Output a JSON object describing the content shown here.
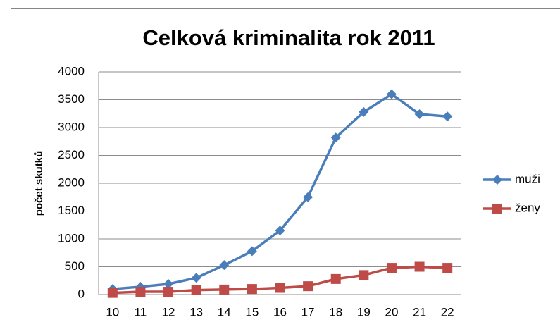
{
  "chart_data": {
    "type": "line",
    "title": "Celková kriminalita rok 2011",
    "y_label": "počet skutků",
    "categories": [
      "10",
      "11",
      "12",
      "13",
      "14",
      "15",
      "16",
      "17",
      "18",
      "19",
      "20",
      "21",
      "22"
    ],
    "series": [
      {
        "name": "muži",
        "color": "#4a7ebb",
        "marker": "diamond",
        "values": [
          100,
          140,
          190,
          300,
          530,
          780,
          1150,
          1750,
          2820,
          3280,
          3600,
          3240,
          3200
        ]
      },
      {
        "name": "ženy",
        "color": "#be4b48",
        "marker": "square",
        "values": [
          30,
          50,
          50,
          80,
          90,
          100,
          120,
          150,
          280,
          350,
          480,
          500,
          480
        ]
      }
    ],
    "ylim": [
      0,
      4000
    ],
    "yticks": [
      0,
      500,
      1000,
      1500,
      2000,
      2500,
      3000,
      3500,
      4000
    ],
    "grid": true,
    "legend": "right"
  }
}
